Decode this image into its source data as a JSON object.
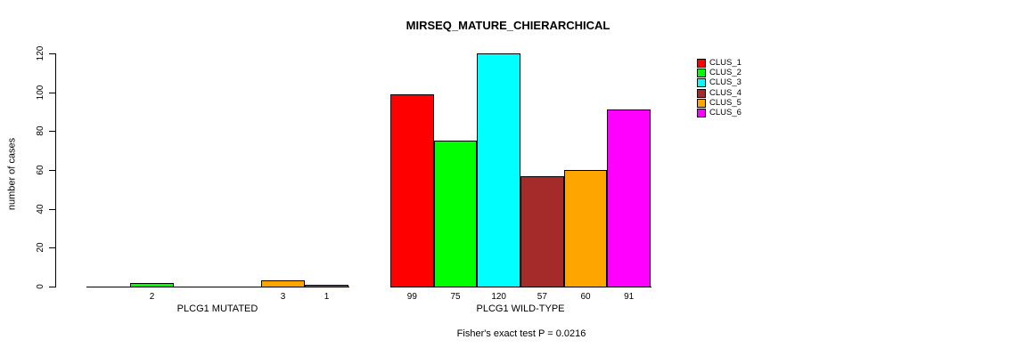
{
  "chart_data": {
    "type": "bar",
    "title": "MIRSEQ_MATURE_CHIERARCHICAL",
    "ylabel": "number of cases",
    "xlabel": "",
    "ylim": [
      0,
      120
    ],
    "yticks": [
      0,
      20,
      40,
      60,
      80,
      100,
      120
    ],
    "grid": false,
    "legend_position": "right",
    "annotation": "Fisher's exact test P = 0.0216",
    "groups": [
      "PLCG1 MUTATED",
      "PLCG1 WILD-TYPE"
    ],
    "series": [
      {
        "name": "CLUS_1",
        "color": "#FF0000",
        "values": [
          0,
          99
        ]
      },
      {
        "name": "CLUS_2",
        "color": "#00FF00",
        "values": [
          2,
          75
        ]
      },
      {
        "name": "CLUS_3",
        "color": "#00FFFF",
        "values": [
          0,
          120
        ]
      },
      {
        "name": "CLUS_4",
        "color": "#A52A2A",
        "values": [
          0,
          57
        ]
      },
      {
        "name": "CLUS_5",
        "color": "#FFA500",
        "values": [
          3,
          60
        ]
      },
      {
        "name": "CLUS_6",
        "color": "#FF00FF",
        "values": [
          1,
          91
        ]
      }
    ],
    "bar_label_rule": "value shown under each bar, hidden when 0",
    "axis_color": "#000000",
    "background_color": "#FFFFFF"
  }
}
